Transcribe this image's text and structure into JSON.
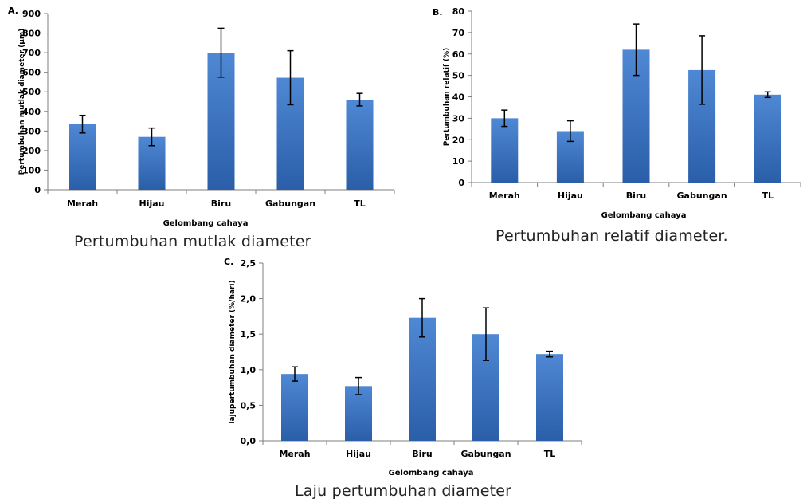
{
  "colors": {
    "bar_top": "#4f88d4",
    "bar_bottom": "#2a5ea9",
    "axis": "#7f7f7f",
    "errorbar": "#000000",
    "text": "#000000"
  },
  "chart_data": [
    {
      "type": "bar",
      "panel_label": "A.",
      "caption": "Pertumbuhan mutlak diameter",
      "xlabel": "Gelombang cahaya",
      "ylabel": "Pertumbuhan mutlak diameter (μm)",
      "categories": [
        "Merah",
        "Hijau",
        "Biru",
        "Gabungan",
        "TL"
      ],
      "values": [
        335,
        270,
        700,
        572,
        460
      ],
      "errors": [
        45,
        45,
        125,
        138,
        32
      ],
      "ylim": [
        0,
        900
      ],
      "yticks": [
        "0",
        "100",
        "200",
        "300",
        "400",
        "500",
        "600",
        "700",
        "800",
        "900"
      ],
      "grid": false
    },
    {
      "type": "bar",
      "panel_label": "B.",
      "caption": "Pertumbuhan relatif diameter.",
      "xlabel": "Gelombang cahaya",
      "ylabel": "Pertumbuhan relatif (%)",
      "categories": [
        "Merah",
        "Hijau",
        "Biru",
        "Gabungan",
        "TL"
      ],
      "values": [
        30,
        24,
        62,
        52.5,
        41
      ],
      "errors": [
        3.8,
        4.8,
        12,
        16,
        1.3
      ],
      "ylim": [
        0,
        80
      ],
      "yticks": [
        "0",
        "10",
        "20",
        "30",
        "40",
        "50",
        "60",
        "70",
        "80"
      ],
      "grid": false
    },
    {
      "type": "bar",
      "panel_label": "C.",
      "caption": "Laju pertumbuhan diameter",
      "xlabel": "Gelombang cahaya",
      "ylabel": "lajupertumbuhan diameter (%/hari)",
      "categories": [
        "Merah",
        "Hijau",
        "Biru",
        "Gabungan",
        "TL"
      ],
      "values": [
        0.94,
        0.77,
        1.73,
        1.5,
        1.22
      ],
      "errors": [
        0.1,
        0.12,
        0.27,
        0.37,
        0.04
      ],
      "ylim": [
        0,
        2.5
      ],
      "yticks": [
        "0,0",
        "0,5",
        "1,0",
        "1,5",
        "2,0",
        "2,5"
      ],
      "grid": false
    }
  ]
}
